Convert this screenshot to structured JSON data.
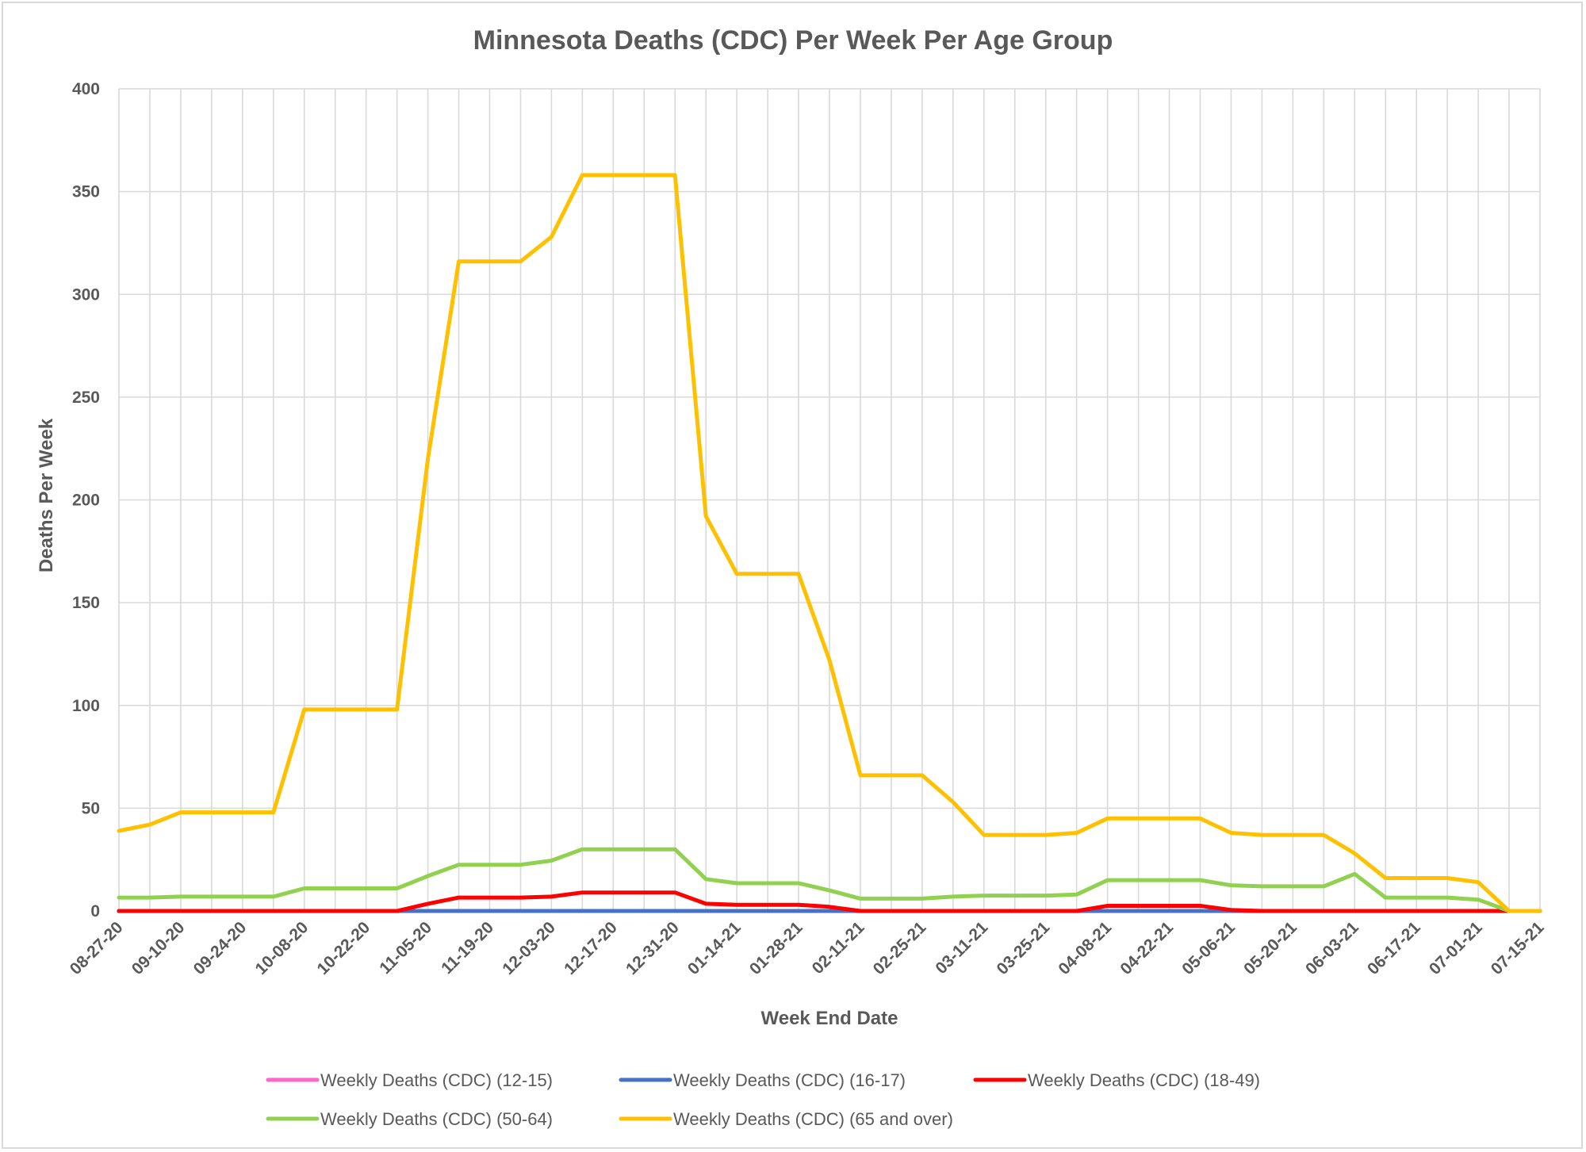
{
  "chart_data": {
    "type": "line",
    "title": "Minnesota Deaths (CDC) Per Week Per Age Group",
    "xlabel": "Week End Date",
    "ylabel": "Deaths Per Week",
    "ylim": [
      0,
      400
    ],
    "yticks": [
      0,
      50,
      100,
      150,
      200,
      250,
      300,
      350,
      400
    ],
    "grid": true,
    "legend_position": "bottom",
    "x": [
      "08-27-20",
      "09-03-20",
      "09-10-20",
      "09-17-20",
      "09-24-20",
      "10-01-20",
      "10-08-20",
      "10-15-20",
      "10-22-20",
      "10-29-20",
      "11-05-20",
      "11-12-20",
      "11-19-20",
      "11-26-20",
      "12-03-20",
      "12-10-20",
      "12-17-20",
      "12-24-20",
      "12-31-20",
      "01-07-21",
      "01-14-21",
      "01-21-21",
      "01-28-21",
      "02-04-21",
      "02-11-21",
      "02-18-21",
      "02-25-21",
      "03-04-21",
      "03-11-21",
      "03-18-21",
      "03-25-21",
      "04-01-21",
      "04-08-21",
      "04-15-21",
      "04-22-21",
      "04-29-21",
      "05-06-21",
      "05-13-21",
      "05-20-21",
      "05-27-21",
      "06-03-21",
      "06-10-21",
      "06-17-21",
      "06-24-21",
      "07-01-21",
      "07-08-21",
      "07-15-21"
    ],
    "x_tick_labels": [
      "08-27-20",
      "09-10-20",
      "09-24-20",
      "10-08-20",
      "10-22-20",
      "11-05-20",
      "11-19-20",
      "12-03-20",
      "12-17-20",
      "12-31-20",
      "01-14-21",
      "01-28-21",
      "02-11-21",
      "02-25-21",
      "03-11-21",
      "03-25-21",
      "04-08-21",
      "04-22-21",
      "05-06-21",
      "05-20-21",
      "06-03-21",
      "06-17-21",
      "07-01-21",
      "07-15-21"
    ],
    "series": [
      {
        "name": "Weekly Deaths (CDC) (12-15)",
        "color": "#ff66cc",
        "values": [
          0,
          0,
          0,
          0,
          0,
          0,
          0,
          0,
          0,
          0,
          0,
          0,
          0,
          0,
          0,
          0,
          0,
          0,
          0,
          0,
          0,
          0,
          0,
          0,
          0,
          0,
          0,
          0,
          0,
          0,
          0,
          0,
          0,
          0,
          0,
          0,
          0,
          0,
          0,
          0,
          0,
          0,
          0,
          0,
          0,
          0,
          0
        ]
      },
      {
        "name": "Weekly Deaths (CDC) (16-17)",
        "color": "#4472c4",
        "values": [
          0,
          0,
          0,
          0,
          0,
          0,
          0,
          0,
          0,
          0,
          0,
          0,
          0,
          0,
          0,
          0,
          0,
          0,
          0,
          0,
          0,
          0,
          0,
          0,
          0,
          0,
          0,
          0,
          0,
          0,
          0,
          0,
          0,
          0,
          0,
          0,
          0,
          0,
          0,
          0,
          0,
          0,
          0,
          0,
          0,
          0,
          0
        ]
      },
      {
        "name": "Weekly Deaths (CDC) (18-49)",
        "color": "#ff0000",
        "values": [
          0,
          0,
          0,
          0,
          0,
          0,
          0,
          0,
          0,
          0,
          3.5,
          6.5,
          6.5,
          6.5,
          7,
          9,
          9,
          9,
          9,
          3.5,
          3,
          3,
          3,
          2,
          0,
          0,
          0,
          0,
          0,
          0,
          0,
          0,
          2.5,
          2.5,
          2.5,
          2.5,
          0.5,
          0,
          0,
          0,
          0,
          0,
          0,
          0,
          0,
          0,
          0
        ]
      },
      {
        "name": "Weekly Deaths (CDC) (50-64)",
        "color": "#92d050",
        "values": [
          6.5,
          6.5,
          7,
          7,
          7,
          7,
          11,
          11,
          11,
          11,
          17,
          22.5,
          22.5,
          22.5,
          24.5,
          30,
          30,
          30,
          30,
          15.5,
          13.5,
          13.5,
          13.5,
          10,
          6,
          6,
          6,
          7,
          7.5,
          7.5,
          7.5,
          8,
          15,
          15,
          15,
          15,
          12.5,
          12,
          12,
          12,
          18,
          6.5,
          6.5,
          6.5,
          5.5,
          0,
          0
        ]
      },
      {
        "name": "Weekly Deaths (CDC) (65 and over)",
        "color": "#ffc000",
        "values": [
          39,
          42,
          48,
          48,
          48,
          48,
          98,
          98,
          98,
          98,
          220,
          316,
          316,
          316,
          328,
          358,
          358,
          358,
          358,
          192,
          164,
          164,
          164,
          122,
          66,
          66,
          66,
          53,
          37,
          37,
          37,
          38,
          45,
          45,
          45,
          45,
          38,
          37,
          37,
          37,
          28,
          16,
          16,
          16,
          14,
          0,
          0
        ]
      }
    ]
  }
}
